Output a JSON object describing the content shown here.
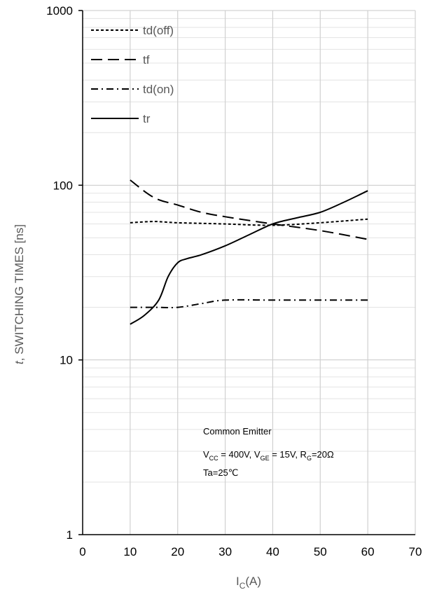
{
  "chart_data": {
    "type": "line",
    "xlabel": "I",
    "xlabel_sub": "C",
    "xlabel_suffix": "(A)",
    "ylabel_italic": "t",
    "ylabel_rest": ", SWITCHING TIMES [ns]",
    "xlim": [
      0,
      70
    ],
    "ylim": [
      1,
      1000
    ],
    "yscale": "log",
    "x_ticks": [
      "0",
      "10",
      "20",
      "30",
      "40",
      "50",
      "60",
      "70"
    ],
    "y_ticks": [
      "1",
      "10",
      "100",
      "1000"
    ],
    "grid": true,
    "legend_position": "top-left",
    "series": [
      {
        "name": "td(off)",
        "dash": "dotted",
        "x": [
          10,
          15,
          20,
          30,
          40,
          50,
          60
        ],
        "y": [
          61,
          62,
          61,
          60,
          59,
          61,
          64
        ]
      },
      {
        "name": "tf",
        "dash": "long-dash",
        "x": [
          10,
          15,
          20,
          25,
          30,
          40,
          50,
          60
        ],
        "y": [
          107,
          85,
          77,
          70,
          66,
          60,
          55,
          49
        ]
      },
      {
        "name": "td(on)",
        "dash": "dash-dot",
        "x": [
          10,
          15,
          20,
          25,
          30,
          40,
          50,
          60
        ],
        "y": [
          20,
          20,
          20,
          21,
          22,
          22,
          22,
          22
        ]
      },
      {
        "name": "tr",
        "dash": "solid",
        "x": [
          10,
          13,
          16,
          18,
          20,
          22,
          25,
          30,
          35,
          40,
          45,
          50,
          55,
          60
        ],
        "y": [
          16,
          18,
          22,
          30,
          36,
          38,
          40,
          45,
          52,
          60,
          65,
          70,
          80,
          93
        ]
      }
    ],
    "annotation": {
      "line1": "Common Emitter",
      "line2_parts": [
        {
          "text": "V"
        },
        {
          "text": "CC",
          "sub": true
        },
        {
          "text": " = 400V, V"
        },
        {
          "text": "GE",
          "sub": true
        },
        {
          "text": " = 15V, R"
        },
        {
          "text": "G",
          "sub": true
        },
        {
          "text": "=20Ω"
        }
      ],
      "line3": " Ta=25℃"
    }
  }
}
